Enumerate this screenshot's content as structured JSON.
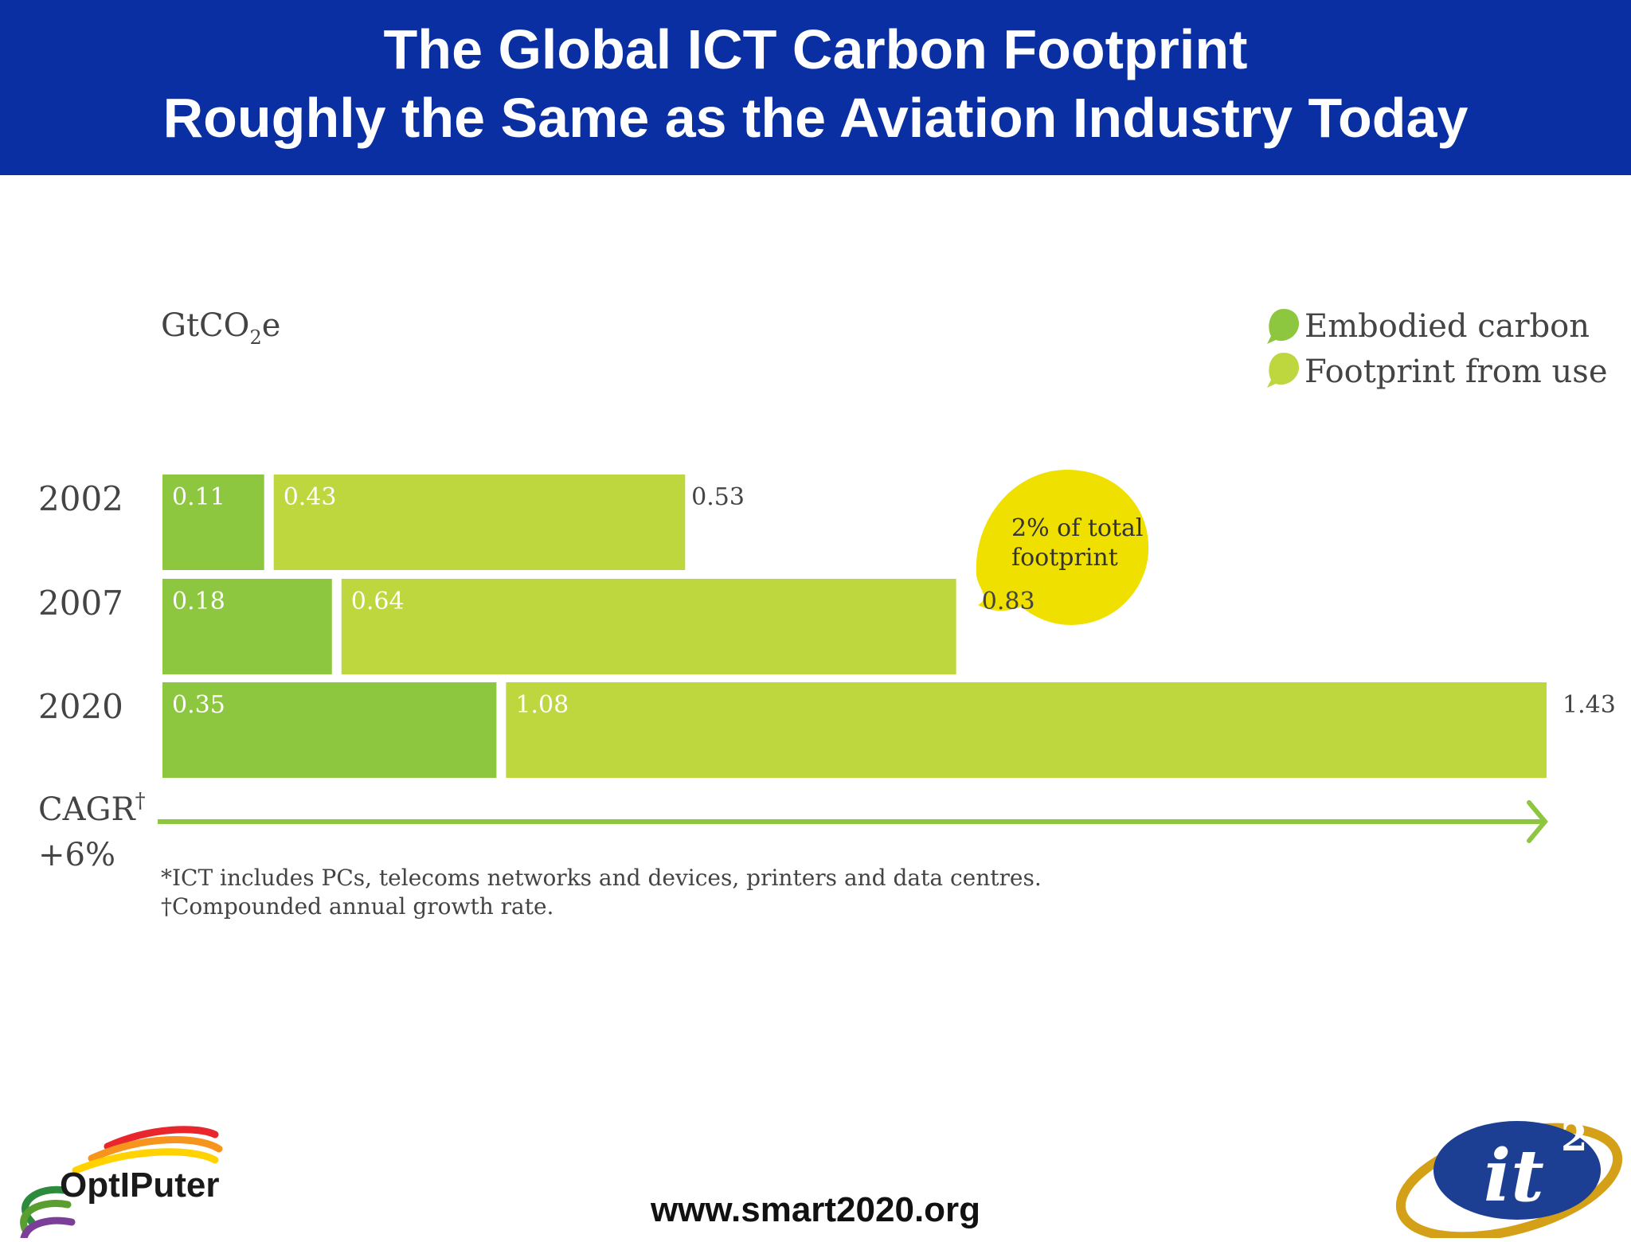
{
  "title": {
    "line1": "The Global ICT Carbon Footprint",
    "line2": "Roughly the Same as the Aviation Industry Today"
  },
  "colors": {
    "header_bg": "#0a2fa3",
    "embodied": "#8dc63f",
    "use": "#bed73f",
    "callout": "#f0e000",
    "arrow": "#8dc63f"
  },
  "chart_data": {
    "type": "bar",
    "stacked": true,
    "orientation": "horizontal",
    "unit_label": "GtCO",
    "unit_subscript": "2",
    "unit_suffix": "e",
    "categories": [
      "2002",
      "2007",
      "2020"
    ],
    "series": [
      {
        "name": "Embodied carbon",
        "values": [
          0.11,
          0.18,
          0.35
        ],
        "labels": [
          "0.11",
          "0.18",
          "0.35"
        ]
      },
      {
        "name": "Footprint from use",
        "values": [
          0.43,
          0.64,
          1.08
        ],
        "labels": [
          "0.43",
          "0.64",
          "1.08"
        ]
      }
    ],
    "totals": [
      0.53,
      0.83,
      1.43
    ],
    "total_labels": [
      "0.53",
      "0.83",
      "1.43"
    ],
    "xlim": [
      0,
      1.43
    ],
    "legend_position": "top-right",
    "callout": {
      "line1": "2% of total",
      "line2": "footprint"
    },
    "cagr": {
      "label": "CAGR",
      "mark": "†",
      "value": "+6%"
    },
    "footnotes": [
      "*ICT includes PCs, telecoms networks and devices, printers and data centres.",
      "†Compounded annual growth rate."
    ]
  },
  "footer": {
    "url": "www.smart2020.org",
    "logo_left_text": "OptIPuter",
    "logo_right_text": "it",
    "logo_right_sup": "2"
  }
}
